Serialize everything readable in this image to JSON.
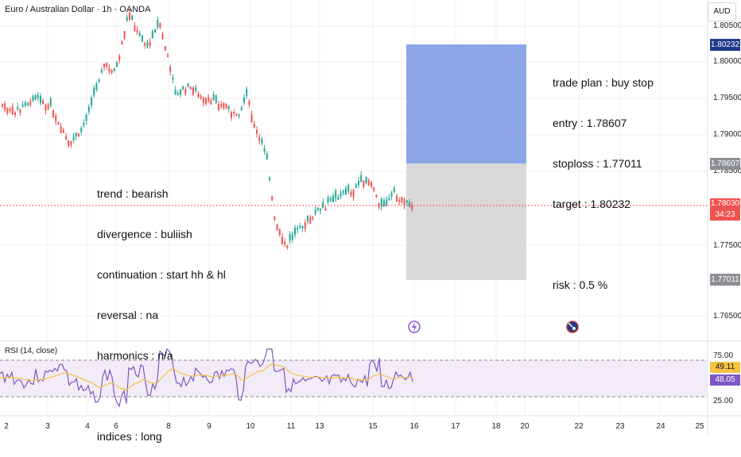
{
  "header": {
    "title": "Euro / Australian Dollar · 1h · OANDA",
    "currency_badge": "AUD"
  },
  "price_axis": {
    "ticks": [
      "1.80500",
      "1.80000",
      "1.79500",
      "1.79000",
      "1.78500",
      "1.77500",
      "1.76500"
    ],
    "target_label": "1.80232",
    "entry_label": "1.78607",
    "last_price": "1.78030",
    "countdown": "34:23",
    "stop_label": "1.77011"
  },
  "rsi": {
    "title": "RSI (14, close)",
    "ticks": [
      "75.00",
      "25.00"
    ],
    "value_ma": "49.11",
    "value_rsi": "48.05"
  },
  "time_axis": {
    "ticks": [
      "2",
      "3",
      "4",
      "6",
      "8",
      "9",
      "10",
      "11",
      "13",
      "15",
      "16",
      "17",
      "18",
      "20",
      "22",
      "23",
      "24",
      "25"
    ]
  },
  "notes": {
    "left": [
      "trend : bearish",
      "divergence : buliish",
      "continuation : start hh & hl",
      "reversal : na",
      "harmonics : n/a",
      "",
      "indices : long"
    ],
    "right": [
      "trade plan : buy stop",
      "entry : 1.78607",
      "stoploss : 1.77011",
      "target : 1.80232",
      "",
      "risk : 0.5 %"
    ]
  },
  "event_icons": [
    "lightning-icon",
    "australia-flag-icon"
  ],
  "colors": {
    "up": "#26a69a",
    "down": "#ef5350",
    "target_zone": "#7f9ce6",
    "stop_zone": "#d9d9d9",
    "rsi_line": "#7e57c2",
    "rsi_ma": "#f5c242"
  }
}
